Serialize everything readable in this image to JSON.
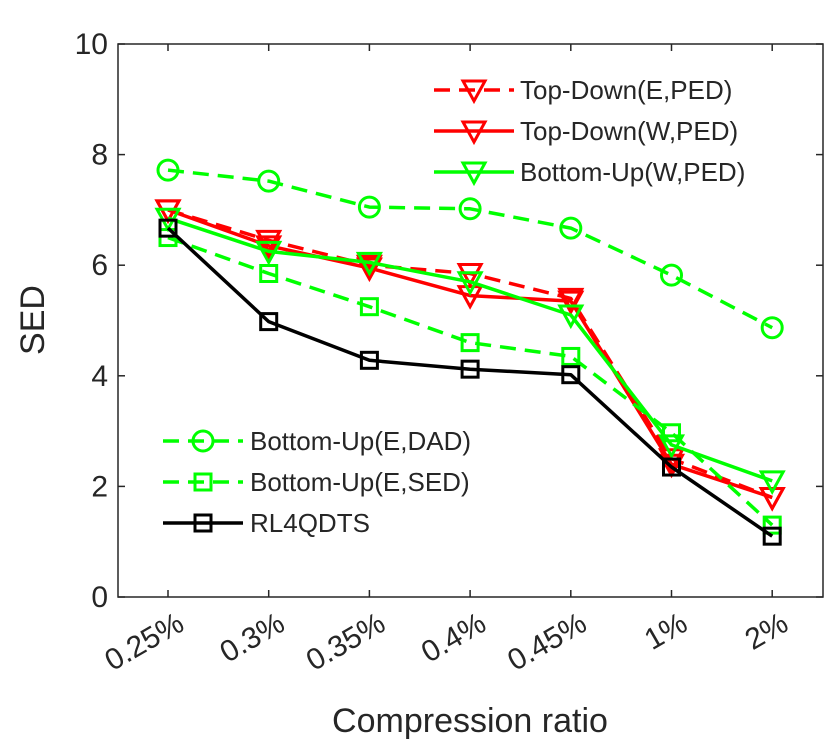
{
  "chart_data": {
    "type": "line",
    "title": "",
    "xlabel": "Compression ratio",
    "ylabel": "SED",
    "ylim": [
      0,
      10
    ],
    "yticks": [
      0,
      2,
      4,
      6,
      8,
      10
    ],
    "categories": [
      "0.25%",
      "0.3%",
      "0.35%",
      "0.4%",
      "0.45%",
      "1%",
      "2%"
    ],
    "grid": false,
    "legends": [
      {
        "placement": "top-right",
        "series": [
          0,
          1,
          2
        ]
      },
      {
        "placement": "bottom-left",
        "series": [
          3,
          4,
          5
        ]
      }
    ],
    "series": [
      {
        "name": "Top-Down(E,PED)",
        "color": "#ff0000",
        "dash": true,
        "marker": "triangle-down",
        "values": [
          7.0,
          6.45,
          6.0,
          5.85,
          5.4,
          2.5,
          1.8
        ]
      },
      {
        "name": "Top-Down(W,PED)",
        "color": "#ff0000",
        "dash": false,
        "marker": "triangle-down",
        "values": [
          7.0,
          6.35,
          5.95,
          5.45,
          5.35,
          2.4,
          1.8
        ]
      },
      {
        "name": "Bottom-Up(W,PED)",
        "color": "#00ff00",
        "dash": false,
        "marker": "triangle-down",
        "values": [
          6.85,
          6.25,
          6.05,
          5.7,
          5.1,
          2.75,
          2.1
        ]
      },
      {
        "name": "Bottom-Up(E,DAD)",
        "color": "#00ff00",
        "dash": true,
        "marker": "circle",
        "values": [
          7.72,
          7.52,
          7.05,
          7.02,
          6.67,
          5.82,
          4.87
        ]
      },
      {
        "name": "Bottom-Up(E,SED)",
        "color": "#00ff00",
        "dash": true,
        "marker": "square",
        "values": [
          6.5,
          5.85,
          5.25,
          4.6,
          4.35,
          2.97,
          1.3
        ]
      },
      {
        "name": "RL4QDTS",
        "color": "#000000",
        "dash": false,
        "marker": "square",
        "values": [
          6.67,
          4.98,
          4.28,
          4.12,
          4.02,
          2.35,
          1.1
        ]
      }
    ]
  }
}
